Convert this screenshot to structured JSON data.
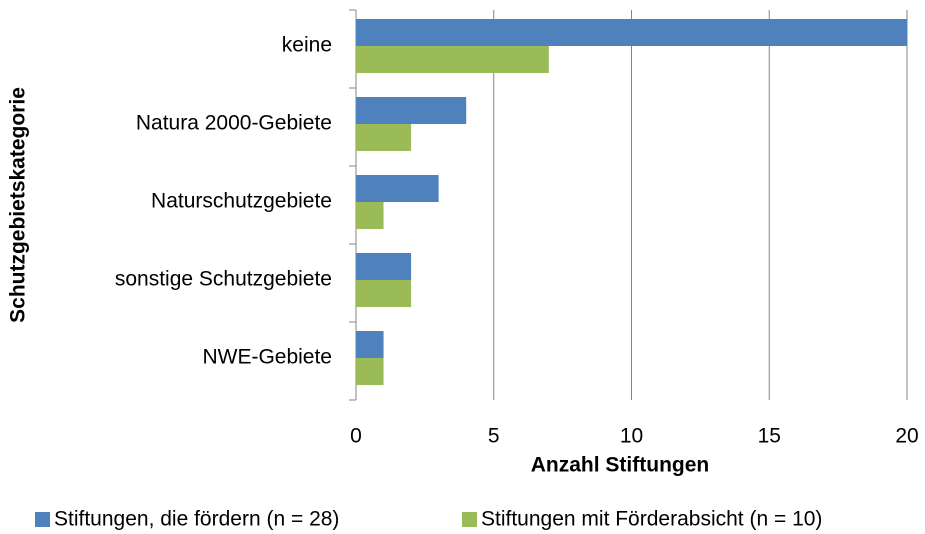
{
  "chart_data": {
    "type": "bar",
    "orientation": "horizontal",
    "categories": [
      "keine",
      "Natura 2000-Gebiete",
      "Naturschutzgebiete",
      "sonstige Schutzgebiete",
      "NWE-Gebiete"
    ],
    "series": [
      {
        "name": "Stiftungen, die fördern (n = 28)",
        "color": "#4f81bd",
        "values": [
          20,
          4,
          3,
          2,
          1
        ]
      },
      {
        "name": "Stiftungen mit Förderabsicht (n = 10)",
        "color": "#9bbb59",
        "values": [
          7,
          2,
          1,
          2,
          1
        ]
      }
    ],
    "xlabel": "Anzahl Stiftungen",
    "ylabel": "Schutzgebietskategorie",
    "xlim": [
      0,
      20
    ],
    "xticks": [
      0,
      5,
      10,
      15,
      20
    ],
    "grid": true,
    "legend": "bottom"
  }
}
